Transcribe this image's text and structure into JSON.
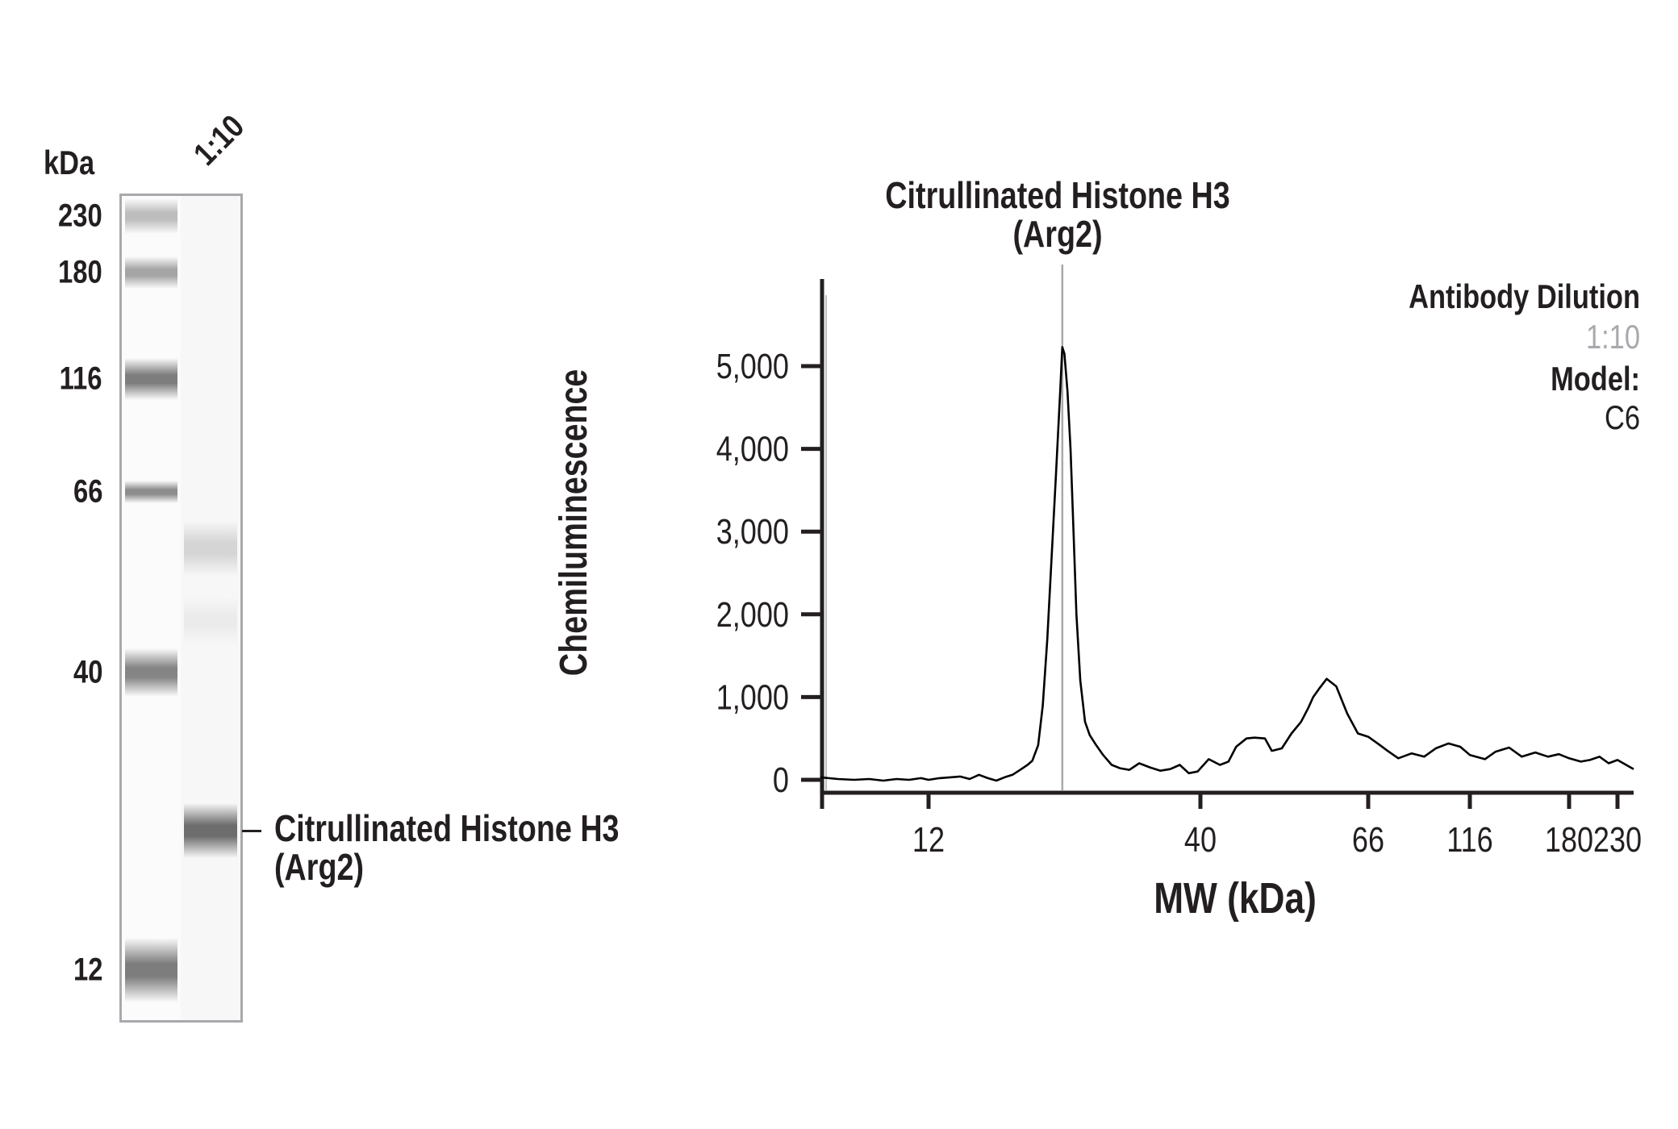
{
  "blot": {
    "unit_label": "kDa",
    "lane_label": "1:10",
    "ladder": [
      {
        "label": "230",
        "y": 268,
        "intensity": 0.35,
        "h": 22
      },
      {
        "label": "180",
        "y": 338,
        "intensity": 0.5,
        "h": 20
      },
      {
        "label": "116",
        "y": 470,
        "intensity": 0.75,
        "h": 26
      },
      {
        "label": "66",
        "y": 610,
        "intensity": 0.65,
        "h": 14
      },
      {
        "label": "40",
        "y": 834,
        "intensity": 0.7,
        "h": 30
      },
      {
        "label": "12",
        "y": 1203,
        "intensity": 0.75,
        "h": 40
      }
    ],
    "sample_bands": [
      {
        "y": 680,
        "intensity": 0.2,
        "h": 34
      },
      {
        "y": 770,
        "intensity": 0.06,
        "h": 30
      },
      {
        "y": 1030,
        "intensity": 0.85,
        "h": 34
      }
    ],
    "band_annotation": {
      "line1": "Citrullinated Histone H3",
      "line2": "(Arg2)"
    }
  },
  "chart_data": {
    "type": "line",
    "title": "Citrullinated Histone H3 (Arg2)",
    "title_line1": "Citrullinated Histone H3",
    "title_line2": "(Arg2)",
    "xlabel": "MW (kDa)",
    "ylabel": "Chemiluminescence",
    "x_scale": "log-like (molecular weight)",
    "x_ticks": [
      12,
      40,
      66,
      116,
      180,
      230
    ],
    "x_tick_labels": [
      "12",
      "40",
      "66",
      "116",
      "180",
      "230"
    ],
    "y_ticks": [
      0,
      1000,
      2000,
      3000,
      4000,
      5000
    ],
    "y_tick_labels": [
      "0",
      "1,000",
      "2,000",
      "3,000",
      "4,000",
      "5,000"
    ],
    "ylim": [
      0,
      5800
    ],
    "xlim": [
      7.4,
      249
    ],
    "grid": false,
    "annotation_line_mw": 21.7,
    "legend": {
      "heading": "Antibody Dilution",
      "series_label": "1:10",
      "series_color": "#a7a9ac",
      "model_heading": "Model:",
      "model_value": "C6"
    },
    "series": [
      {
        "name": "1:10",
        "color": "#000000",
        "x": [
          7.4,
          8,
          8.6,
          9.2,
          9.8,
          10.4,
          11,
          11.6,
          12,
          12.6,
          13.2,
          13.8,
          14.4,
          15,
          15.6,
          16.2,
          16.8,
          17.4,
          18.0,
          18.6,
          19.0,
          19.5,
          19.9,
          20.3,
          20.7,
          21.1,
          21.5,
          21.7,
          21.9,
          22.2,
          22.5,
          22.8,
          23.1,
          23.5,
          24.0,
          24.5,
          25.2,
          26,
          27,
          28,
          29.2,
          30.5,
          32,
          33.5,
          35,
          36.5,
          38,
          39.5,
          41,
          42.4,
          43.5,
          44.5,
          45.9,
          47,
          48.5,
          49.5,
          51,
          52.5,
          54,
          55.2,
          56,
          57,
          58.3,
          60,
          62,
          64,
          66,
          70,
          73.5,
          78,
          84,
          90,
          96,
          103,
          110,
          116,
          124,
          130,
          138,
          146,
          155,
          164,
          172,
          180,
          191,
          200,
          210,
          220,
          230,
          240,
          249
        ],
        "y": [
          30,
          10,
          0,
          10,
          -10,
          10,
          0,
          20,
          0,
          20,
          30,
          40,
          10,
          60,
          20,
          -10,
          30,
          60,
          120,
          180,
          230,
          420,
          900,
          1700,
          2700,
          3700,
          4700,
          5230,
          5150,
          4700,
          4000,
          3000,
          2000,
          1200,
          700,
          540,
          420,
          300,
          180,
          140,
          120,
          200,
          150,
          110,
          130,
          180,
          80,
          100,
          250,
          180,
          220,
          400,
          500,
          510,
          500,
          350,
          380,
          560,
          700,
          870,
          1000,
          1100,
          1220,
          1130,
          800,
          560,
          520,
          430,
          350,
          260,
          320,
          280,
          380,
          440,
          400,
          300,
          250,
          340,
          390,
          280,
          330,
          280,
          310,
          260,
          220,
          240,
          280,
          200,
          240,
          180,
          130
        ]
      }
    ]
  }
}
